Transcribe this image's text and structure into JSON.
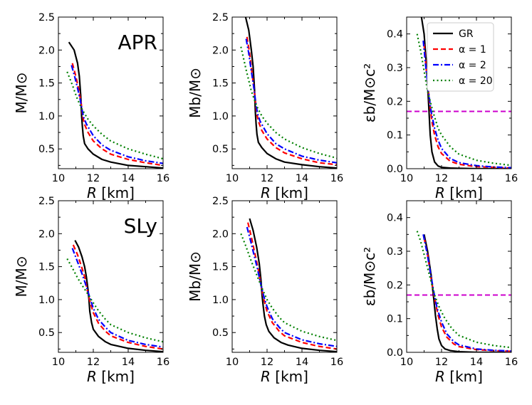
{
  "figure": {
    "title": ""
  },
  "legend": {
    "location": "upper-right of top-right panel",
    "entries": [
      {
        "series": "GR",
        "label": "GR",
        "color": "#000000",
        "dash": "solid"
      },
      {
        "series": "a1",
        "label": "α = 1",
        "color": "#ff0000",
        "dash": "dashed"
      },
      {
        "series": "a2",
        "label": "α = 2",
        "color": "#0000ff",
        "dash": "dashdot"
      },
      {
        "series": "a20",
        "label": "α = 20",
        "color": "#008000",
        "dash": "dotted"
      }
    ]
  },
  "chart_data": [
    {
      "type": "line",
      "id": "p11",
      "eos_label": "APR",
      "xlabel": "R [km]",
      "ylabel": "M/M⊙",
      "xlim": [
        10,
        16
      ],
      "ylim": [
        0.2,
        2.5
      ],
      "xticks": [
        10,
        12,
        14,
        16
      ],
      "yticks": [
        0.5,
        1.0,
        1.5,
        2.0,
        2.5
      ],
      "ytick_labels": [
        "0.5",
        "1.0",
        "1.5",
        "2.0",
        "2.5"
      ],
      "series": [
        {
          "name": "GR",
          "x": [
            10.6,
            10.9,
            11.1,
            11.2,
            11.28,
            11.33,
            11.37,
            11.42,
            11.5,
            11.7,
            12.0,
            12.5,
            13.0,
            14.0,
            15.0,
            16.0
          ],
          "y": [
            2.12,
            2.0,
            1.8,
            1.6,
            1.3,
            1.0,
            0.85,
            0.7,
            0.58,
            0.5,
            0.42,
            0.34,
            0.3,
            0.25,
            0.23,
            0.21
          ]
        },
        {
          "name": "a1",
          "x": [
            10.8,
            11.0,
            11.15,
            11.3,
            11.4,
            11.5,
            11.7,
            12.0,
            12.5,
            13.0,
            14.0,
            15.0,
            16.0
          ],
          "y": [
            1.8,
            1.6,
            1.42,
            1.2,
            0.98,
            0.87,
            0.75,
            0.62,
            0.5,
            0.42,
            0.34,
            0.29,
            0.25
          ]
        },
        {
          "name": "a2",
          "x": [
            10.75,
            10.95,
            11.1,
            11.25,
            11.35,
            11.45,
            11.6,
            12.0,
            12.5,
            13.0,
            14.0,
            15.0,
            16.0
          ],
          "y": [
            1.77,
            1.58,
            1.42,
            1.25,
            1.1,
            0.98,
            0.88,
            0.7,
            0.56,
            0.48,
            0.38,
            0.32,
            0.28
          ]
        },
        {
          "name": "a20",
          "x": [
            10.5,
            10.8,
            11.1,
            11.4,
            11.7,
            12.0,
            12.5,
            13.0,
            14.0,
            15.0,
            16.0
          ],
          "y": [
            1.67,
            1.47,
            1.25,
            1.08,
            0.95,
            0.85,
            0.72,
            0.62,
            0.5,
            0.42,
            0.35
          ]
        }
      ]
    },
    {
      "type": "line",
      "id": "p12",
      "eos_label": "",
      "xlabel": "R [km]",
      "ylabel": "Mb/M⊙",
      "xlim": [
        10,
        16
      ],
      "ylim": [
        0.2,
        2.5
      ],
      "xticks": [
        10,
        12,
        14,
        16
      ],
      "yticks": [
        0.5,
        1.0,
        1.5,
        2.0,
        2.5
      ],
      "ytick_labels": [
        "0.5",
        "1.0",
        "1.5",
        "2.0",
        "2.5"
      ],
      "series": [
        {
          "name": "GR",
          "x": [
            10.75,
            10.95,
            11.1,
            11.2,
            11.28,
            11.33,
            11.37,
            11.42,
            11.5,
            11.7,
            12.0,
            12.5,
            13.0,
            14.0,
            15.0,
            16.0
          ],
          "y": [
            2.52,
            2.3,
            2.0,
            1.75,
            1.4,
            1.05,
            0.88,
            0.72,
            0.6,
            0.52,
            0.43,
            0.35,
            0.3,
            0.26,
            0.23,
            0.21
          ]
        },
        {
          "name": "a1",
          "x": [
            10.85,
            11.0,
            11.15,
            11.3,
            11.4,
            11.5,
            11.7,
            12.0,
            12.5,
            13.0,
            14.0,
            15.0,
            16.0
          ],
          "y": [
            2.2,
            1.95,
            1.62,
            1.3,
            1.05,
            0.92,
            0.78,
            0.65,
            0.52,
            0.44,
            0.35,
            0.29,
            0.26
          ]
        },
        {
          "name": "a2",
          "x": [
            10.8,
            10.95,
            11.1,
            11.25,
            11.35,
            11.45,
            11.6,
            12.0,
            12.5,
            13.0,
            14.0,
            15.0,
            16.0
          ],
          "y": [
            2.17,
            1.95,
            1.68,
            1.42,
            1.2,
            1.04,
            0.92,
            0.73,
            0.58,
            0.5,
            0.39,
            0.33,
            0.29
          ]
        },
        {
          "name": "a20",
          "x": [
            10.5,
            10.8,
            11.1,
            11.4,
            11.7,
            12.0,
            12.5,
            13.0,
            14.0,
            15.0,
            16.0
          ],
          "y": [
            2.05,
            1.7,
            1.38,
            1.15,
            1.0,
            0.89,
            0.75,
            0.65,
            0.52,
            0.43,
            0.36
          ]
        }
      ]
    },
    {
      "type": "line",
      "id": "p13",
      "eos_label": "",
      "xlabel": "R [km]",
      "ylabel": "εb/M⊙c²",
      "xlim": [
        10,
        16
      ],
      "ylim": [
        0,
        0.45
      ],
      "xticks": [
        10,
        12,
        14,
        16
      ],
      "yticks": [
        0.0,
        0.1,
        0.2,
        0.3,
        0.4
      ],
      "ytick_labels": [
        "0.0",
        "0.1",
        "0.2",
        "0.3",
        "0.4"
      ],
      "hline": {
        "y": 0.17,
        "color": "#cc00cc"
      },
      "series": [
        {
          "name": "GR",
          "x": [
            10.85,
            11.0,
            11.1,
            11.2,
            11.28,
            11.35,
            11.45,
            11.6,
            11.8,
            12.0,
            12.5,
            13.0,
            14.0,
            15.0,
            16.0
          ],
          "y": [
            0.45,
            0.4,
            0.33,
            0.25,
            0.17,
            0.1,
            0.05,
            0.02,
            0.008,
            0.004,
            0.002,
            0.001,
            0,
            0,
            0
          ]
        },
        {
          "name": "a1",
          "x": [
            11.0,
            11.15,
            11.3,
            11.45,
            11.6,
            11.8,
            12.0,
            12.5,
            13.0,
            14.0,
            15.0,
            16.0
          ],
          "y": [
            0.37,
            0.28,
            0.2,
            0.14,
            0.1,
            0.065,
            0.045,
            0.022,
            0.013,
            0.006,
            0.004,
            0.002
          ]
        },
        {
          "name": "a2",
          "x": [
            10.95,
            11.1,
            11.25,
            11.4,
            11.6,
            11.8,
            12.0,
            12.5,
            13.0,
            14.0,
            15.0,
            16.0
          ],
          "y": [
            0.38,
            0.3,
            0.23,
            0.17,
            0.12,
            0.085,
            0.06,
            0.03,
            0.018,
            0.009,
            0.005,
            0.003
          ]
        },
        {
          "name": "a20",
          "x": [
            10.6,
            10.8,
            11.0,
            11.2,
            11.5,
            11.8,
            12.0,
            12.5,
            13.0,
            14.0,
            15.0,
            16.0
          ],
          "y": [
            0.4,
            0.35,
            0.29,
            0.23,
            0.17,
            0.12,
            0.1,
            0.065,
            0.043,
            0.025,
            0.016,
            0.01
          ]
        }
      ]
    },
    {
      "type": "line",
      "id": "p21",
      "eos_label": "SLy",
      "xlabel": "R [km]",
      "ylabel": "M/M⊙",
      "xlim": [
        10,
        16
      ],
      "ylim": [
        0.2,
        2.5
      ],
      "xticks": [
        10,
        12,
        14,
        16
      ],
      "yticks": [
        0.5,
        1.0,
        1.5,
        2.0,
        2.5
      ],
      "ytick_labels": [
        "0.5",
        "1.0",
        "1.5",
        "2.0",
        "2.5"
      ],
      "series": [
        {
          "name": "GR",
          "x": [
            10.95,
            11.15,
            11.35,
            11.5,
            11.6,
            11.7,
            11.75,
            11.8,
            11.9,
            12.0,
            12.3,
            12.7,
            13.0,
            14.0,
            15.0,
            16.0
          ],
          "y": [
            1.9,
            1.8,
            1.65,
            1.5,
            1.35,
            1.15,
            1.0,
            0.82,
            0.65,
            0.55,
            0.44,
            0.36,
            0.32,
            0.26,
            0.23,
            0.21
          ]
        },
        {
          "name": "a1",
          "x": [
            10.85,
            11.1,
            11.3,
            11.5,
            11.65,
            11.8,
            12.0,
            12.3,
            12.7,
            13.0,
            14.0,
            15.0,
            16.0
          ],
          "y": [
            1.83,
            1.68,
            1.52,
            1.35,
            1.15,
            0.98,
            0.8,
            0.64,
            0.52,
            0.45,
            0.35,
            0.29,
            0.25
          ]
        },
        {
          "name": "a2",
          "x": [
            10.8,
            11.0,
            11.2,
            11.4,
            11.6,
            11.8,
            12.0,
            12.3,
            12.7,
            13.0,
            14.0,
            15.0,
            16.0
          ],
          "y": [
            1.78,
            1.64,
            1.5,
            1.36,
            1.2,
            1.03,
            0.87,
            0.7,
            0.58,
            0.5,
            0.38,
            0.32,
            0.28
          ]
        },
        {
          "name": "a20",
          "x": [
            10.5,
            10.8,
            11.1,
            11.4,
            11.7,
            12.0,
            12.3,
            12.7,
            13.0,
            14.0,
            15.0,
            16.0
          ],
          "y": [
            1.62,
            1.48,
            1.33,
            1.2,
            1.08,
            0.95,
            0.83,
            0.7,
            0.62,
            0.5,
            0.42,
            0.36
          ]
        }
      ]
    },
    {
      "type": "line",
      "id": "p22",
      "eos_label": "",
      "xlabel": "R [km]",
      "ylabel": "Mb/M⊙",
      "xlim": [
        10,
        16
      ],
      "ylim": [
        0.2,
        2.5
      ],
      "xticks": [
        10,
        12,
        14,
        16
      ],
      "yticks": [
        0.5,
        1.0,
        1.5,
        2.0,
        2.5
      ],
      "ytick_labels": [
        "0.5",
        "1.0",
        "1.5",
        "2.0",
        "2.5"
      ],
      "series": [
        {
          "name": "GR",
          "x": [
            11.0,
            11.2,
            11.4,
            11.55,
            11.65,
            11.72,
            11.78,
            11.85,
            11.95,
            12.1,
            12.4,
            12.8,
            13.2,
            14.0,
            15.0,
            16.0
          ],
          "y": [
            2.23,
            2.05,
            1.8,
            1.55,
            1.3,
            1.05,
            0.9,
            0.75,
            0.62,
            0.52,
            0.42,
            0.35,
            0.31,
            0.26,
            0.23,
            0.21
          ]
        },
        {
          "name": "a1",
          "x": [
            10.9,
            11.1,
            11.3,
            11.5,
            11.65,
            11.8,
            12.0,
            12.3,
            12.7,
            13.0,
            14.0,
            15.0,
            16.0
          ],
          "y": [
            2.17,
            1.95,
            1.7,
            1.45,
            1.22,
            1.02,
            0.82,
            0.65,
            0.52,
            0.45,
            0.35,
            0.29,
            0.25
          ]
        },
        {
          "name": "a2",
          "x": [
            10.85,
            11.05,
            11.25,
            11.45,
            11.6,
            11.8,
            12.0,
            12.3,
            12.7,
            13.0,
            14.0,
            15.0,
            16.0
          ],
          "y": [
            2.1,
            1.9,
            1.68,
            1.47,
            1.28,
            1.06,
            0.89,
            0.71,
            0.58,
            0.5,
            0.39,
            0.33,
            0.29
          ]
        },
        {
          "name": "a20",
          "x": [
            10.5,
            10.8,
            11.1,
            11.4,
            11.7,
            12.0,
            12.3,
            12.7,
            13.0,
            14.0,
            15.0,
            16.0
          ],
          "y": [
            2.0,
            1.8,
            1.58,
            1.38,
            1.18,
            1.0,
            0.87,
            0.73,
            0.65,
            0.52,
            0.44,
            0.38
          ]
        }
      ]
    },
    {
      "type": "line",
      "id": "p23",
      "eos_label": "",
      "xlabel": "R [km]",
      "ylabel": "εb/M⊙c²",
      "xlim": [
        10,
        16
      ],
      "ylim": [
        0,
        0.45
      ],
      "xticks": [
        10,
        12,
        14,
        16
      ],
      "yticks": [
        0.0,
        0.1,
        0.2,
        0.3,
        0.4
      ],
      "ytick_labels": [
        "0.0",
        "0.1",
        "0.2",
        "0.3",
        "0.4"
      ],
      "hline": {
        "y": 0.17,
        "color": "#cc00cc"
      },
      "series": [
        {
          "name": "GR",
          "x": [
            11.0,
            11.2,
            11.4,
            11.55,
            11.65,
            11.75,
            11.85,
            12.0,
            12.2,
            12.5,
            13.0,
            14.0,
            15.0,
            16.0
          ],
          "y": [
            0.35,
            0.3,
            0.23,
            0.16,
            0.11,
            0.07,
            0.04,
            0.02,
            0.01,
            0.005,
            0.002,
            0,
            0,
            0
          ]
        },
        {
          "name": "a1",
          "x": [
            11.0,
            11.2,
            11.4,
            11.6,
            11.8,
            12.0,
            12.3,
            12.7,
            13.0,
            14.0,
            15.0,
            16.0
          ],
          "y": [
            0.34,
            0.29,
            0.22,
            0.16,
            0.11,
            0.075,
            0.045,
            0.025,
            0.017,
            0.008,
            0.005,
            0.003
          ]
        },
        {
          "name": "a2",
          "x": [
            10.95,
            11.15,
            11.35,
            11.55,
            11.75,
            12.0,
            12.3,
            12.7,
            13.0,
            14.0,
            15.0,
            16.0
          ],
          "y": [
            0.35,
            0.3,
            0.24,
            0.18,
            0.13,
            0.09,
            0.055,
            0.032,
            0.022,
            0.01,
            0.006,
            0.004
          ]
        },
        {
          "name": "a20",
          "x": [
            10.6,
            10.8,
            11.0,
            11.3,
            11.6,
            11.9,
            12.2,
            12.6,
            13.0,
            14.0,
            15.0,
            16.0
          ],
          "y": [
            0.36,
            0.33,
            0.29,
            0.23,
            0.17,
            0.13,
            0.1,
            0.07,
            0.05,
            0.03,
            0.02,
            0.014
          ]
        }
      ]
    }
  ]
}
